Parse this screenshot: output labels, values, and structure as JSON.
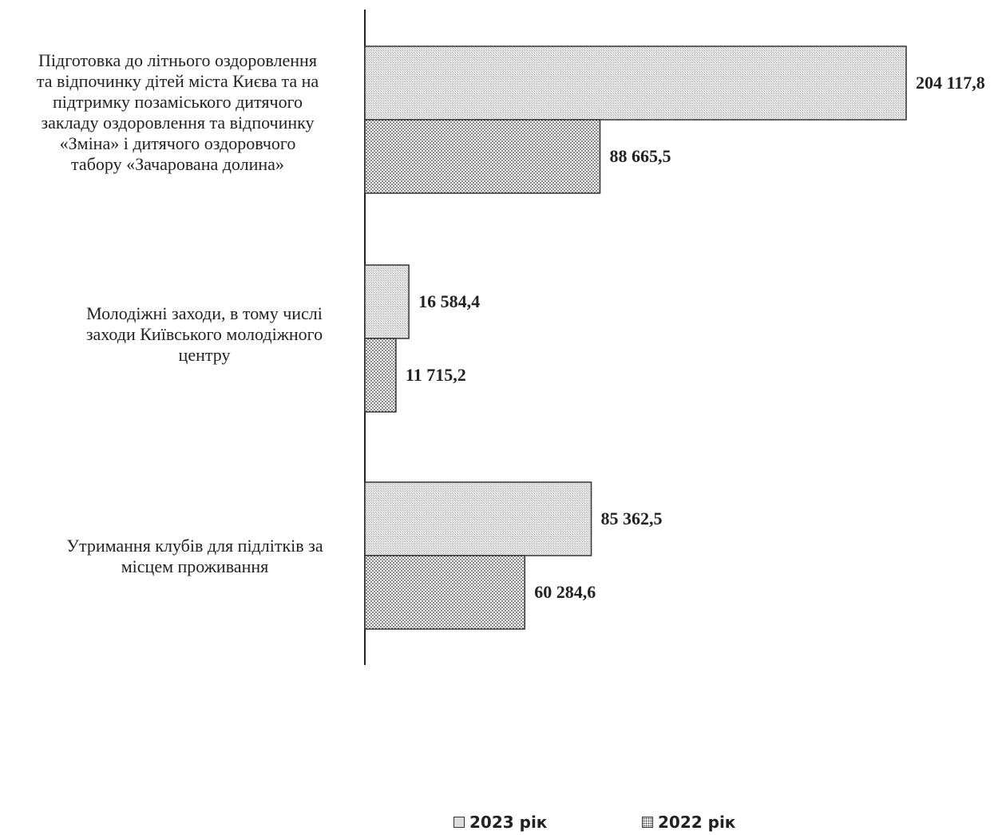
{
  "chart_data": {
    "type": "bar",
    "orientation": "horizontal",
    "categories": [
      "Підготовка до літнього оздоровлення\nта відпочинку дітей міста Києва та на\nпідтримку позаміського дитячого\nзакладу оздоровлення та відпочинку\n«Зміна» і дитячого оздоровчого\nтабору «Зачарована долина»",
      "Молодіжні заходи, в тому числі\nзаходи Київського молодіжного\nцентру",
      "Утримання клубів для підлітків за\nмісцем проживання"
    ],
    "series": [
      {
        "name": "2023 рік",
        "values": [
          204117.8,
          16584.4,
          85362.5
        ],
        "labels": [
          "204 117,8",
          "16 584,4",
          "85 362,5"
        ],
        "fill": "#dcdcdc",
        "pattern": "solid-gray"
      },
      {
        "name": "2022 рік",
        "values": [
          88665.5,
          11715.2,
          60284.6
        ],
        "labels": [
          "88 665,5",
          "11 715,2",
          "60 284,6"
        ],
        "fill": "#ffffff",
        "pattern": "dotted"
      }
    ],
    "xlim": [
      0,
      204117.8
    ],
    "grid": false,
    "legend_position": "bottom"
  },
  "legend": {
    "items": [
      "2023 рік",
      "2022 рік"
    ]
  }
}
